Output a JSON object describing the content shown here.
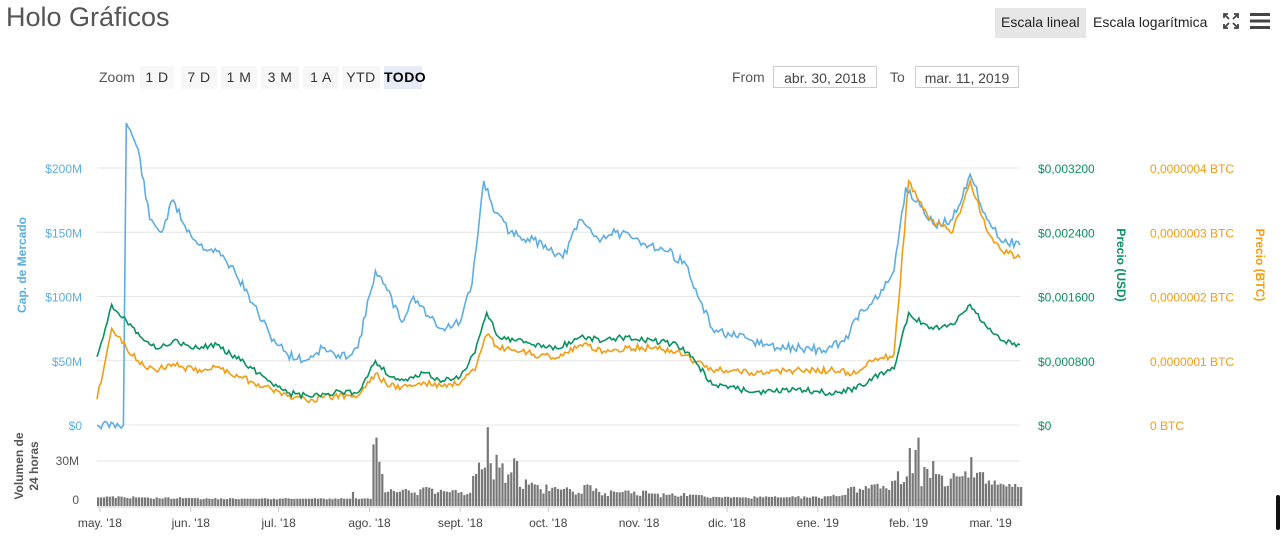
{
  "title": "Holo Gráficos",
  "scale_buttons": {
    "linear": "Escala lineal",
    "log": "Escala logarítmica"
  },
  "zoom": {
    "label": "Zoom",
    "buttons": [
      "1 D",
      "7 D",
      "1 M",
      "3 M",
      "1 A",
      "YTD",
      "TODO"
    ],
    "active": "TODO"
  },
  "range": {
    "from_label": "From",
    "from_value": "abr. 30, 2018",
    "to_label": "To",
    "to_value": "mar. 11, 2019"
  },
  "colors": {
    "market_cap": "#5dade2",
    "price_usd": "#0a9160",
    "price_btc": "#f39c12",
    "volume": "#777777",
    "grid": "#e6e6e6"
  },
  "icons": {
    "fullscreen": "fullscreen-icon",
    "menu": "menu-icon"
  },
  "chart_data": {
    "type": "line",
    "x_range": [
      "2018-04-30",
      "2019-03-11"
    ],
    "x_ticks": [
      "may. '18",
      "jun. '18",
      "jul. '18",
      "ago. '18",
      "sept. '18",
      "oct. '18",
      "nov. '18",
      "dic. '18",
      "ene. '19",
      "feb. '19",
      "mar. '19"
    ],
    "y_axes": {
      "market_cap": {
        "label": "Cap. de Mercado",
        "ticks": [
          "$0",
          "$50M",
          "$100M",
          "$150M",
          "$200M"
        ],
        "range": [
          0,
          200
        ]
      },
      "price_usd": {
        "label": "Precio (USD)",
        "ticks": [
          "$0",
          "$0,000800",
          "$0,001600",
          "$0,002400",
          "$0,003200"
        ],
        "range": [
          0,
          0.0032
        ]
      },
      "price_btc": {
        "label": "Precio (BTC)",
        "ticks": [
          "0 BTC",
          "0,0000001 BTC",
          "0,0000002 BTC",
          "0,0000003 BTC",
          "0,0000004 BTC"
        ],
        "range": [
          0,
          4e-07
        ]
      }
    },
    "volume_axis": {
      "label": "Volumen de 24 horas",
      "ticks": [
        "0",
        "30M"
      ]
    },
    "series": [
      {
        "name": "Cap. de Mercado",
        "unit": "USD millions",
        "points": [
          [
            "2018-04-30",
            0
          ],
          [
            "2018-05-09",
            0
          ],
          [
            "2018-05-10",
            235
          ],
          [
            "2018-05-14",
            215
          ],
          [
            "2018-05-18",
            160
          ],
          [
            "2018-05-22",
            150
          ],
          [
            "2018-05-26",
            175
          ],
          [
            "2018-05-30",
            155
          ],
          [
            "2018-06-04",
            140
          ],
          [
            "2018-06-10",
            135
          ],
          [
            "2018-06-16",
            120
          ],
          [
            "2018-06-22",
            95
          ],
          [
            "2018-06-28",
            70
          ],
          [
            "2018-07-04",
            55
          ],
          [
            "2018-07-10",
            50
          ],
          [
            "2018-07-16",
            60
          ],
          [
            "2018-07-22",
            52
          ],
          [
            "2018-07-28",
            60
          ],
          [
            "2018-08-03",
            120
          ],
          [
            "2018-08-07",
            105
          ],
          [
            "2018-08-12",
            80
          ],
          [
            "2018-08-16",
            100
          ],
          [
            "2018-08-21",
            85
          ],
          [
            "2018-08-26",
            75
          ],
          [
            "2018-09-01",
            80
          ],
          [
            "2018-09-05",
            110
          ],
          [
            "2018-09-09",
            190
          ],
          [
            "2018-09-13",
            165
          ],
          [
            "2018-09-18",
            150
          ],
          [
            "2018-09-24",
            145
          ],
          [
            "2018-09-30",
            140
          ],
          [
            "2018-10-06",
            130
          ],
          [
            "2018-10-12",
            160
          ],
          [
            "2018-10-18",
            145
          ],
          [
            "2018-10-24",
            150
          ],
          [
            "2018-10-30",
            145
          ],
          [
            "2018-11-05",
            140
          ],
          [
            "2018-11-11",
            135
          ],
          [
            "2018-11-17",
            125
          ],
          [
            "2018-11-21",
            100
          ],
          [
            "2018-11-26",
            75
          ],
          [
            "2018-12-02",
            70
          ],
          [
            "2018-12-10",
            65
          ],
          [
            "2018-12-18",
            60
          ],
          [
            "2018-12-26",
            60
          ],
          [
            "2019-01-03",
            58
          ],
          [
            "2019-01-10",
            65
          ],
          [
            "2019-01-16",
            90
          ],
          [
            "2019-01-22",
            100
          ],
          [
            "2019-01-27",
            120
          ],
          [
            "2019-01-31",
            185
          ],
          [
            "2019-02-05",
            170
          ],
          [
            "2019-02-10",
            155
          ],
          [
            "2019-02-16",
            160
          ],
          [
            "2019-02-22",
            195
          ],
          [
            "2019-02-27",
            165
          ],
          [
            "2019-03-04",
            145
          ],
          [
            "2019-03-11",
            140
          ]
        ]
      },
      {
        "name": "Precio (USD)",
        "unit": "USD",
        "points": [
          [
            "2018-04-30",
            0.00085
          ],
          [
            "2018-05-05",
            0.0015
          ],
          [
            "2018-05-10",
            0.0013
          ],
          [
            "2018-05-14",
            0.00115
          ],
          [
            "2018-05-20",
            0.00095
          ],
          [
            "2018-05-26",
            0.00105
          ],
          [
            "2018-06-02",
            0.00095
          ],
          [
            "2018-06-10",
            0.001
          ],
          [
            "2018-06-18",
            0.0008
          ],
          [
            "2018-06-26",
            0.0006
          ],
          [
            "2018-07-04",
            0.0004
          ],
          [
            "2018-07-12",
            0.00035
          ],
          [
            "2018-07-20",
            0.0004
          ],
          [
            "2018-07-28",
            0.0004
          ],
          [
            "2018-08-03",
            0.0008
          ],
          [
            "2018-08-08",
            0.0006
          ],
          [
            "2018-08-14",
            0.00055
          ],
          [
            "2018-08-20",
            0.00065
          ],
          [
            "2018-08-26",
            0.00055
          ],
          [
            "2018-09-01",
            0.0006
          ],
          [
            "2018-09-06",
            0.0009
          ],
          [
            "2018-09-10",
            0.0014
          ],
          [
            "2018-09-14",
            0.0011
          ],
          [
            "2018-09-20",
            0.00105
          ],
          [
            "2018-09-26",
            0.001
          ],
          [
            "2018-10-04",
            0.00095
          ],
          [
            "2018-10-12",
            0.0011
          ],
          [
            "2018-10-20",
            0.00105
          ],
          [
            "2018-10-28",
            0.0011
          ],
          [
            "2018-11-06",
            0.00105
          ],
          [
            "2018-11-14",
            0.001
          ],
          [
            "2018-11-20",
            0.0008
          ],
          [
            "2018-11-26",
            0.0005
          ],
          [
            "2018-12-04",
            0.00045
          ],
          [
            "2018-12-14",
            0.0004
          ],
          [
            "2018-12-24",
            0.00045
          ],
          [
            "2019-01-05",
            0.0004
          ],
          [
            "2019-01-14",
            0.00045
          ],
          [
            "2019-01-20",
            0.0006
          ],
          [
            "2019-01-27",
            0.0007
          ],
          [
            "2019-02-01",
            0.0014
          ],
          [
            "2019-02-08",
            0.0012
          ],
          [
            "2019-02-16",
            0.00125
          ],
          [
            "2019-02-22",
            0.0015
          ],
          [
            "2019-02-28",
            0.0012
          ],
          [
            "2019-03-05",
            0.00105
          ],
          [
            "2019-03-11",
            0.001
          ]
        ]
      },
      {
        "name": "Precio (BTC)",
        "unit": "BTC",
        "points": [
          [
            "2018-04-30",
            4e-08
          ],
          [
            "2018-05-05",
            1.5e-07
          ],
          [
            "2018-05-10",
            1.2e-07
          ],
          [
            "2018-05-14",
            1e-07
          ],
          [
            "2018-05-20",
            8.5e-08
          ],
          [
            "2018-05-26",
            9.5e-08
          ],
          [
            "2018-06-02",
            8.5e-08
          ],
          [
            "2018-06-10",
            9e-08
          ],
          [
            "2018-06-18",
            7.5e-08
          ],
          [
            "2018-06-26",
            6e-08
          ],
          [
            "2018-07-04",
            4.5e-08
          ],
          [
            "2018-07-12",
            4e-08
          ],
          [
            "2018-07-20",
            4.5e-08
          ],
          [
            "2018-07-28",
            4.5e-08
          ],
          [
            "2018-08-03",
            8e-08
          ],
          [
            "2018-08-08",
            6e-08
          ],
          [
            "2018-08-14",
            6e-08
          ],
          [
            "2018-08-20",
            6.5e-08
          ],
          [
            "2018-08-26",
            6e-08
          ],
          [
            "2018-09-01",
            6.5e-08
          ],
          [
            "2018-09-06",
            8.5e-08
          ],
          [
            "2018-09-10",
            1.4e-07
          ],
          [
            "2018-09-14",
            1.2e-07
          ],
          [
            "2018-09-20",
            1.15e-07
          ],
          [
            "2018-09-26",
            1.1e-07
          ],
          [
            "2018-10-04",
            1.05e-07
          ],
          [
            "2018-10-12",
            1.25e-07
          ],
          [
            "2018-10-20",
            1.15e-07
          ],
          [
            "2018-10-28",
            1.2e-07
          ],
          [
            "2018-11-06",
            1.2e-07
          ],
          [
            "2018-11-14",
            1.15e-07
          ],
          [
            "2018-11-20",
            1e-07
          ],
          [
            "2018-11-26",
            8.5e-08
          ],
          [
            "2018-12-04",
            8.5e-08
          ],
          [
            "2018-12-14",
            8e-08
          ],
          [
            "2018-12-24",
            8.5e-08
          ],
          [
            "2019-01-05",
            8.5e-08
          ],
          [
            "2019-01-14",
            8e-08
          ],
          [
            "2019-01-20",
            1e-07
          ],
          [
            "2019-01-27",
            1.1e-07
          ],
          [
            "2019-02-01",
            3.8e-07
          ],
          [
            "2019-02-08",
            3.2e-07
          ],
          [
            "2019-02-16",
            3e-07
          ],
          [
            "2019-02-22",
            3.8e-07
          ],
          [
            "2019-02-28",
            3e-07
          ],
          [
            "2019-03-05",
            2.7e-07
          ],
          [
            "2019-03-11",
            2.6e-07
          ]
        ]
      },
      {
        "name": "Volumen de 24 horas",
        "unit": "USD millions",
        "points": [
          [
            "2018-04-30",
            2
          ],
          [
            "2018-05-15",
            2
          ],
          [
            "2018-06-01",
            1.5
          ],
          [
            "2018-06-20",
            1
          ],
          [
            "2018-07-10",
            1
          ],
          [
            "2018-07-25",
            1
          ],
          [
            "2018-08-03",
            48
          ],
          [
            "2018-08-05",
            20
          ],
          [
            "2018-08-10",
            6
          ],
          [
            "2018-08-20",
            10
          ],
          [
            "2018-08-28",
            6
          ],
          [
            "2018-09-06",
            20
          ],
          [
            "2018-09-10",
            56
          ],
          [
            "2018-09-14",
            25
          ],
          [
            "2018-09-20",
            30
          ],
          [
            "2018-09-26",
            12
          ],
          [
            "2018-10-05",
            8
          ],
          [
            "2018-10-14",
            12
          ],
          [
            "2018-10-24",
            6
          ],
          [
            "2018-11-05",
            5
          ],
          [
            "2018-11-20",
            4
          ],
          [
            "2018-12-05",
            2
          ],
          [
            "2018-12-20",
            2
          ],
          [
            "2019-01-05",
            3
          ],
          [
            "2019-01-12",
            10
          ],
          [
            "2019-01-20",
            12
          ],
          [
            "2019-01-27",
            15
          ],
          [
            "2019-02-01",
            40
          ],
          [
            "2019-02-04",
            48
          ],
          [
            "2019-02-10",
            20
          ],
          [
            "2019-02-18",
            18
          ],
          [
            "2019-02-22",
            33
          ],
          [
            "2019-02-28",
            15
          ],
          [
            "2019-03-05",
            12
          ],
          [
            "2019-03-11",
            10
          ]
        ]
      }
    ]
  }
}
